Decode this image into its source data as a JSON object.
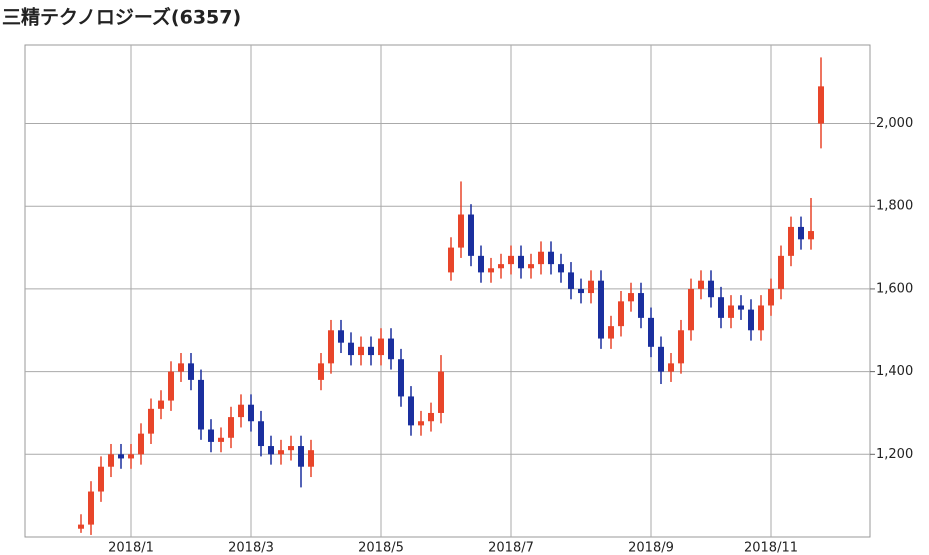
{
  "chart_data": {
    "type": "candlestick",
    "title": "三精テクノロジーズ(6357)",
    "categories": [
      null,
      null,
      null,
      null,
      null,
      "2018/1",
      null,
      null,
      null,
      null,
      null,
      null,
      null,
      null,
      null,
      null,
      null,
      "2018/3",
      null,
      null,
      null,
      null,
      null,
      null,
      null,
      null,
      null,
      null,
      null,
      null,
      "2018/5",
      null,
      null,
      null,
      null,
      null,
      null,
      null,
      null,
      null,
      null,
      null,
      null,
      "2018/7",
      null,
      null,
      null,
      null,
      null,
      null,
      null,
      null,
      null,
      null,
      null,
      null,
      null,
      "2018/9",
      null,
      null,
      null,
      null,
      null,
      null,
      null,
      null,
      null,
      null,
      null,
      "2018/11",
      null,
      null,
      null,
      null,
      null
    ],
    "open": [
      1020,
      1030,
      1110,
      1170,
      1200,
      1190,
      1200,
      1250,
      1310,
      1330,
      1400,
      1420,
      1380,
      1260,
      1230,
      1240,
      1290,
      1320,
      1280,
      1220,
      1200,
      1210,
      1220,
      1170,
      1380,
      1420,
      1500,
      1470,
      1440,
      1460,
      1440,
      1480,
      1430,
      1340,
      1270,
      1280,
      1300,
      1640,
      1700,
      1780,
      1680,
      1640,
      1650,
      1660,
      1680,
      1650,
      1660,
      1690,
      1660,
      1640,
      1600,
      1590,
      1620,
      1480,
      1510,
      1570,
      1590,
      1530,
      1460,
      1400,
      1420,
      1500,
      1600,
      1620,
      1580,
      1530,
      1560,
      1550,
      1500,
      1560,
      1600,
      1680,
      1750,
      1720,
      2000
    ],
    "high": [
      1055,
      1135,
      1195,
      1225,
      1225,
      1225,
      1275,
      1335,
      1355,
      1425,
      1445,
      1445,
      1405,
      1285,
      1265,
      1315,
      1345,
      1345,
      1305,
      1245,
      1235,
      1245,
      1245,
      1235,
      1445,
      1525,
      1525,
      1495,
      1485,
      1485,
      1505,
      1505,
      1455,
      1365,
      1305,
      1325,
      1440,
      1725,
      1860,
      1805,
      1705,
      1675,
      1685,
      1705,
      1705,
      1685,
      1715,
      1715,
      1685,
      1665,
      1625,
      1645,
      1645,
      1535,
      1595,
      1615,
      1615,
      1555,
      1485,
      1445,
      1525,
      1625,
      1645,
      1645,
      1605,
      1585,
      1585,
      1575,
      1585,
      1625,
      1705,
      1775,
      1775,
      1820,
      2160
    ],
    "low": [
      1010,
      1005,
      1085,
      1145,
      1165,
      1165,
      1175,
      1225,
      1285,
      1305,
      1375,
      1355,
      1235,
      1205,
      1205,
      1215,
      1265,
      1255,
      1195,
      1175,
      1175,
      1185,
      1120,
      1145,
      1355,
      1395,
      1445,
      1415,
      1415,
      1415,
      1415,
      1405,
      1315,
      1245,
      1245,
      1255,
      1275,
      1620,
      1675,
      1655,
      1615,
      1615,
      1625,
      1635,
      1625,
      1625,
      1635,
      1635,
      1615,
      1575,
      1565,
      1565,
      1455,
      1455,
      1485,
      1545,
      1505,
      1435,
      1370,
      1375,
      1395,
      1475,
      1575,
      1555,
      1505,
      1505,
      1525,
      1475,
      1475,
      1535,
      1575,
      1655,
      1695,
      1695,
      1940
    ],
    "close": [
      1030,
      1110,
      1170,
      1200,
      1190,
      1200,
      1250,
      1310,
      1330,
      1400,
      1420,
      1380,
      1260,
      1230,
      1240,
      1290,
      1320,
      1280,
      1220,
      1200,
      1210,
      1220,
      1170,
      1210,
      1420,
      1500,
      1470,
      1440,
      1460,
      1440,
      1480,
      1430,
      1340,
      1270,
      1280,
      1300,
      1400,
      1700,
      1780,
      1680,
      1640,
      1650,
      1660,
      1680,
      1650,
      1660,
      1690,
      1660,
      1640,
      1600,
      1590,
      1620,
      1480,
      1510,
      1570,
      1590,
      1530,
      1460,
      1400,
      1420,
      1500,
      1600,
      1620,
      1580,
      1530,
      1560,
      1550,
      1500,
      1560,
      1600,
      1680,
      1750,
      1720,
      1740,
      2090
    ],
    "up_color": "#e8452a",
    "down_color": "#1a2f9e",
    "ylim": [
      1000,
      2190
    ],
    "yticks": [
      {
        "value": 1200,
        "label": "1,200"
      },
      {
        "value": 1400,
        "label": "1,400"
      },
      {
        "value": 1600,
        "label": "1,600"
      },
      {
        "value": 1800,
        "label": "1,800"
      },
      {
        "value": 2000,
        "label": "2,000"
      }
    ],
    "grid": true
  }
}
